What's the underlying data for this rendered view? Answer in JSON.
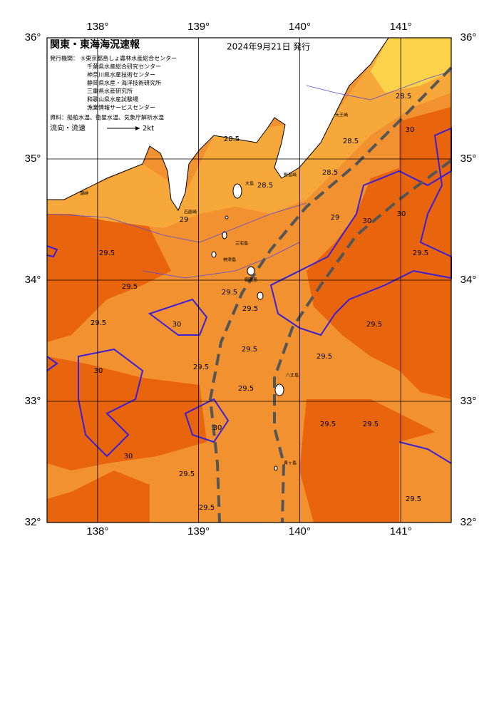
{
  "header": {
    "title": "関東・東海海況速報",
    "date": "2024年9月21日 発行"
  },
  "issuers": {
    "label": "発行機関：",
    "list": [
      "⑤東京都島しょ農林水産総合センター",
      "千葉県水産総合研究センター",
      "神奈川県水産技術センター",
      "静岡県水産・海洋技術研究所",
      "三重県水産研究所",
      "和歌山県水産試験場",
      "漁業情報サービスセンター"
    ]
  },
  "source": "資料：船舶水温、衛星水温、気象庁解析水温",
  "legend": {
    "label": "流向・流速",
    "speed": "2kt"
  },
  "map": {
    "xlim": [
      137.5,
      141.5
    ],
    "ylim": [
      32,
      36
    ],
    "xticks": [
      {
        "value": 138,
        "label": "138°"
      },
      {
        "value": 139,
        "label": "139°"
      },
      {
        "value": 140,
        "label": "140°"
      },
      {
        "value": 141,
        "label": "141°"
      }
    ],
    "yticks": [
      {
        "value": 32,
        "label": "32°"
      },
      {
        "value": 33,
        "label": "33°"
      },
      {
        "value": 34,
        "label": "34°"
      },
      {
        "value": 35,
        "label": "35°"
      },
      {
        "value": 36,
        "label": "36°"
      }
    ],
    "contour_labels": [
      "28.5",
      "28.5",
      "28.5",
      "28.5",
      "28.5",
      "29",
      "29",
      "29.5",
      "29.5",
      "29.5",
      "29.5",
      "29.5",
      "29.5",
      "29.5",
      "29.5",
      "29.5",
      "29.5",
      "29.5",
      "29.5",
      "29.5",
      "29.5",
      "29.5",
      "29.5",
      "30",
      "30",
      "30",
      "30",
      "30",
      "30",
      "30"
    ],
    "places": [
      "大島",
      "三宅島",
      "神津島",
      "御蔵島",
      "八丈島",
      "青ヶ島",
      "野島崎",
      "石廊崎",
      "大王崎",
      "潮岬"
    ]
  }
}
